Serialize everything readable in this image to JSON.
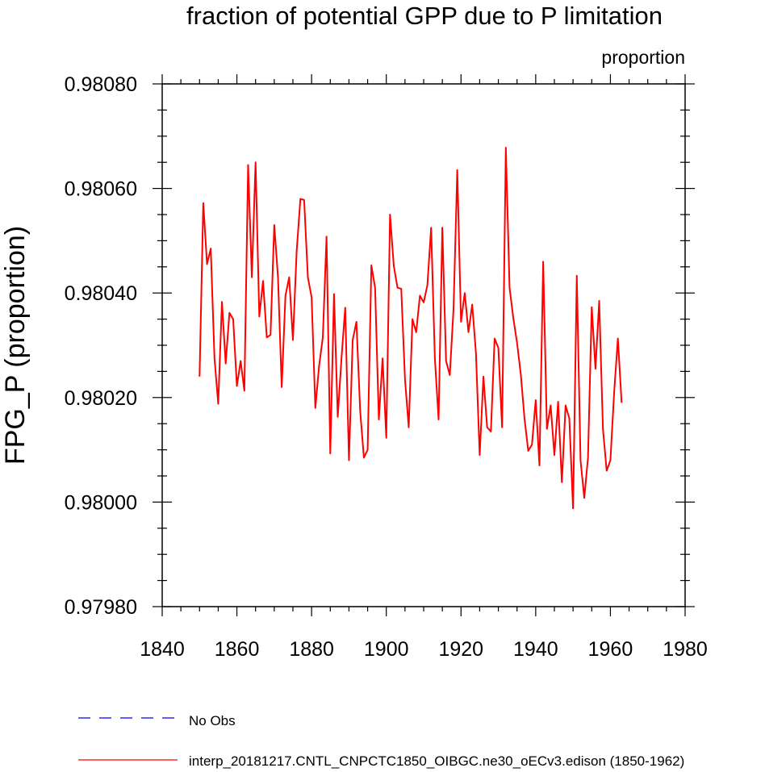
{
  "chart_data": {
    "type": "line",
    "title": "fraction of potential GPP due to P limitation",
    "units_label": "proportion",
    "xlabel": "",
    "ylabel": "FPG_P  (proportion)",
    "xlim": [
      1840,
      1980
    ],
    "ylim": [
      0.9798,
      0.9808
    ],
    "x_ticks": [
      "1840",
      "1860",
      "1880",
      "1900",
      "1920",
      "1940",
      "1960",
      "1980"
    ],
    "y_ticks": [
      "0.97980",
      "0.98000",
      "0.98020",
      "0.98040",
      "0.98060",
      "0.98080"
    ],
    "legend": [
      {
        "label": "No Obs",
        "color": "#0000ff",
        "style": "dashed"
      },
      {
        "label": "interp_20181217.CNTL_CNPCTC1850_OIBGC.ne30_oECv3.edison (1850-1962)",
        "color": "#ff0000",
        "style": "solid"
      }
    ],
    "series": [
      {
        "name": "interp_20181217.CNTL_CNPCTC1850_OIBGC.ne30_oECv3.edison (1850-1962)",
        "color": "#ff0000",
        "x_start": 1850,
        "x_step": 1,
        "values": [
          0.98024,
          0.980572,
          0.980455,
          0.980485,
          0.980275,
          0.980188,
          0.980383,
          0.980265,
          0.980362,
          0.98035,
          0.980222,
          0.98027,
          0.980213,
          0.980645,
          0.98043,
          0.98065,
          0.980355,
          0.980423,
          0.980315,
          0.98032,
          0.98053,
          0.98043,
          0.98022,
          0.980395,
          0.98043,
          0.98031,
          0.98048,
          0.98058,
          0.980578,
          0.98043,
          0.980392,
          0.98018,
          0.98026,
          0.980315,
          0.980508,
          0.980093,
          0.980398,
          0.980163,
          0.980275,
          0.980372,
          0.98008,
          0.98031,
          0.980345,
          0.980175,
          0.980085,
          0.9801,
          0.980453,
          0.98041,
          0.980158,
          0.980275,
          0.980123,
          0.98055,
          0.980452,
          0.98041,
          0.980408,
          0.980235,
          0.980143,
          0.98035,
          0.980325,
          0.980395,
          0.980382,
          0.980415,
          0.980525,
          0.980275,
          0.980158,
          0.980525,
          0.98027,
          0.980243,
          0.98037,
          0.980635,
          0.980345,
          0.9804,
          0.980325,
          0.980378,
          0.980285,
          0.98009,
          0.98024,
          0.980143,
          0.980135,
          0.980313,
          0.980295,
          0.980143,
          0.980678,
          0.98041,
          0.980352,
          0.980305,
          0.980245,
          0.98016,
          0.980098,
          0.98011,
          0.980195,
          0.98007,
          0.98046,
          0.98014,
          0.980185,
          0.98009,
          0.980192,
          0.980038,
          0.980185,
          0.98016,
          0.979988,
          0.980433,
          0.98008,
          0.980008,
          0.980085,
          0.980373,
          0.980255,
          0.980385,
          0.98014,
          0.98006,
          0.98008,
          0.98021,
          0.980313,
          0.98019
        ]
      }
    ]
  }
}
